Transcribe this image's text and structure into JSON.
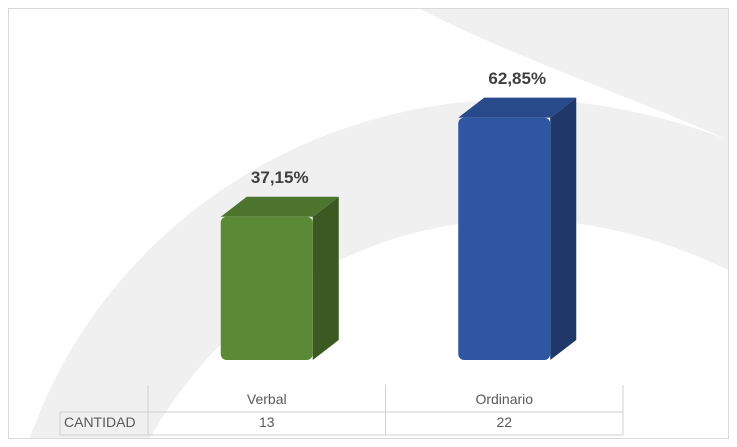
{
  "chart_data": {
    "type": "bar",
    "categories": [
      "Verbal",
      "Ordinario"
    ],
    "values": [
      37.15,
      62.85
    ],
    "value_labels": [
      "37,15%",
      "62,85%"
    ],
    "colors": [
      "#5a8a35",
      "#2f56a2"
    ],
    "ylim": [
      0,
      70
    ],
    "data_table": {
      "row_label": "CANTIDAD",
      "values": [
        13,
        22
      ]
    }
  }
}
